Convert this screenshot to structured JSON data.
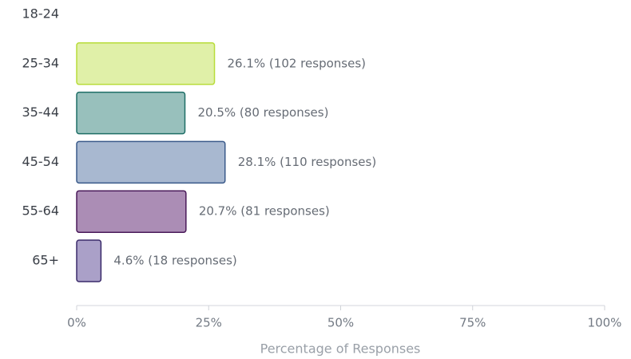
{
  "chart_data": {
    "type": "hbar",
    "categories": [
      "18-24",
      "25-34",
      "35-44",
      "45-54",
      "55-64",
      "65+"
    ],
    "values": [
      null,
      26.1,
      20.5,
      28.1,
      20.7,
      4.6
    ],
    "value_labels": [
      null,
      "26.1% (102 responses)",
      "20.5% (80 responses)",
      "28.1% (110 responses)",
      "20.7% (81 responses)",
      "4.6% (18 responses)"
    ],
    "colors": [
      null,
      "#e0f0a8",
      "#98c0bc",
      "#a8b8d0",
      "#ab8db5",
      "#aaa0c8"
    ],
    "edge_colors": [
      null,
      "#b8dc3a",
      "#1e6e66",
      "#3a5a8a",
      "#4a1a5a",
      "#3a2a6a"
    ],
    "xlabel": "Percentage of Responses",
    "xlim": [
      0,
      100
    ],
    "xticks": [
      {
        "value": 0,
        "label": "0%"
      },
      {
        "value": 25,
        "label": "25%"
      },
      {
        "value": 50,
        "label": "50%"
      },
      {
        "value": 75,
        "label": "75%"
      },
      {
        "value": 100,
        "label": "100%"
      }
    ]
  }
}
